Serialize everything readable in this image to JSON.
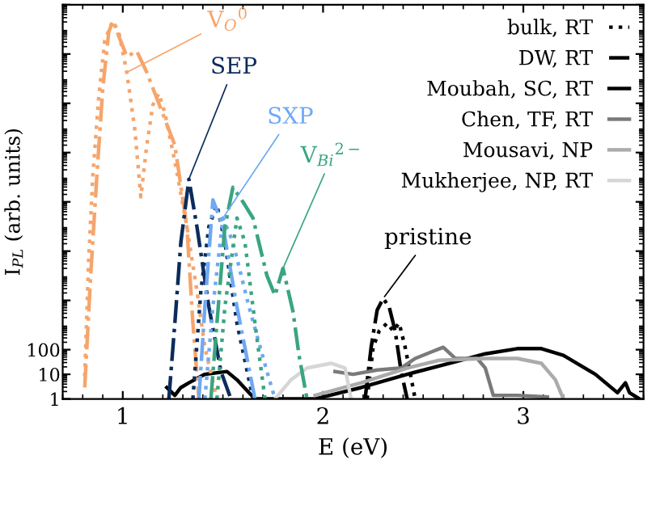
{
  "chart_data": {
    "type": "line",
    "xlabel": "E (eV)",
    "ylabel": "I$_{PL}$ (arb. units)",
    "log": "y",
    "xlim": [
      0.7,
      3.6
    ],
    "xticks": [
      1,
      2,
      3
    ],
    "ylim": [
      1,
      1e+16
    ],
    "yticks": [
      1,
      10,
      100,
      {
        "value": 10000.0,
        "label": null
      },
      {
        "value": 1000000.0,
        "label": null
      },
      {
        "value": 100000000.0,
        "label": null
      },
      {
        "value": 10000000000.0,
        "label": null
      },
      {
        "value": 1000000000000.0,
        "label": null
      },
      {
        "value": 100000000000000.0,
        "label": null
      },
      {
        "value": 1e+16,
        "label": null
      }
    ],
    "legend": "top right",
    "grid": false,
    "series": [
      {
        "name": "bulk, RT",
        "color": "#000000",
        "line_style": "dotted",
        "x": [
          2.22,
          2.25,
          2.28,
          2.32,
          2.35,
          2.38,
          2.41,
          2.46
        ],
        "values": [
          1,
          125,
          570,
          1200,
          570,
          1200,
          125,
          1
        ]
      },
      {
        "name": "DW, RT",
        "color": "#000000",
        "line_style": "dashdot",
        "x": [
          2.21,
          2.24,
          2.27,
          2.3,
          2.33,
          2.36,
          2.39,
          2.42
        ],
        "values": [
          1,
          125,
          4000,
          12000,
          5500,
          570,
          13,
          1
        ]
      },
      {
        "name": "Moubah, SC, RT",
        "color": "#000000",
        "line_style": "solid",
        "x": [
          1.22,
          1.26,
          1.29,
          1.33,
          1.41,
          1.52,
          1.57,
          1.63,
          1.66,
          1.96,
          2.19,
          2.42,
          2.66,
          2.81,
          2.97,
          3.09,
          3.2,
          3.36,
          3.47,
          3.51,
          3.53,
          3.58
        ],
        "values": [
          2.9,
          1.4,
          2.9,
          4.5,
          10,
          13,
          6,
          1.8,
          1,
          1,
          2.9,
          10,
          32,
          68,
          110,
          110,
          59,
          10,
          1.8,
          4.5,
          1.8,
          1
        ]
      },
      {
        "name": "Chen, TF, RT",
        "color": "#7a7a7a",
        "line_style": "solid",
        "x": [
          2.06,
          2.15,
          2.27,
          2.39,
          2.46,
          2.54,
          2.6,
          2.66,
          2.77,
          2.81,
          2.85,
          2.97,
          3.12
        ],
        "values": [
          13,
          10,
          15,
          18,
          44,
          80,
          125,
          44,
          44,
          18,
          1.4,
          1.4,
          1.2
        ]
      },
      {
        "name": "Mousavi, NP",
        "color": "#ababab",
        "line_style": "solid",
        "x": [
          1.96,
          2.19,
          2.42,
          2.58,
          2.81,
          2.97,
          3.09,
          3.16,
          3.2
        ],
        "values": [
          1.4,
          4.5,
          18,
          37,
          44,
          44,
          28,
          6,
          1
        ]
      },
      {
        "name": "Mukherjee, NP, RT",
        "color": "#d6d6d6",
        "line_style": "solid",
        "x": [
          1.76,
          1.84,
          1.92,
          2.04,
          2.11,
          2.14
        ],
        "values": [
          1,
          6,
          18,
          28,
          18,
          1
        ]
      },
      {
        "color": "#f5a56c",
        "line_style": "dotted",
        "x": [
          0.81,
          0.83,
          0.85,
          0.88,
          0.91,
          0.95,
          0.98,
          1.02,
          1.06,
          1.09,
          1.12,
          1.15,
          1.18,
          1.21,
          1.26,
          1.32,
          1.37,
          1.41,
          1.47
        ],
        "values": [
          8.3,
          500000.0,
          960000000.0,
          1800000000000.0,
          360000000000000.0,
          2200000000000000.0,
          780000000000000.0,
          18000000000000.0,
          89000000000.0,
          160000000.0,
          20000000000.0,
          850000000000.0,
          2500000000000.0,
          410000000000.0,
          4400000000.0,
          10000000.0,
          25000.0,
          125,
          1
        ]
      },
      {
        "color": "#f5a56c",
        "line_style": "dashdot",
        "x": [
          0.81,
          0.84,
          0.87,
          0.9,
          0.93,
          0.95,
          1.02,
          1.07,
          1.12,
          1.26,
          1.32,
          1.35,
          1.38
        ],
        "values": [
          2.9,
          110000.0,
          960000000.0,
          3900000000000.0,
          780000000000000.0,
          2200000000000000.0,
          80000000000000.0,
          130000000000000.0,
          18000000000000.0,
          20000000000.0,
          10000000.0,
          1200,
          1
        ]
      },
      {
        "color": "#0b2c5c",
        "line_style": "dashdot",
        "x": [
          1.23,
          1.26,
          1.29,
          1.33,
          1.37,
          1.43,
          1.49,
          1.54
        ],
        "values": [
          1,
          1200,
          2300000.0,
          830000000.0,
          10000000.0,
          5500,
          13,
          1
        ]
      },
      {
        "color": "#0b2c5c",
        "line_style": "dotted",
        "x": [
          1.35,
          1.39,
          1.43,
          1.47,
          1.51,
          1.57,
          1.65
        ],
        "values": [
          1,
          25000.0,
          10000000.0,
          74000000.0,
          2300000.0,
          1200,
          1
        ]
      },
      {
        "color": "#6ea9f2",
        "line_style": "dashdot",
        "x": [
          1.38,
          1.41,
          1.45,
          1.5,
          1.57,
          1.66
        ],
        "values": [
          1,
          5500,
          120000000.0,
          10000000.0,
          5500,
          1
        ]
      },
      {
        "color": "#6ea9f2",
        "line_style": "dotted",
        "x": [
          1.41,
          1.45,
          1.5,
          1.55,
          1.63,
          1.72,
          1.76
        ],
        "values": [
          1,
          5500,
          22000000.0,
          2300000.0,
          5500,
          13,
          1
        ]
      },
      {
        "color": "#3aa57f",
        "line_style": "dashdot",
        "x": [
          1.44,
          1.47,
          1.51,
          1.55,
          1.6,
          1.65,
          1.72,
          1.76,
          1.8,
          1.85,
          1.88,
          1.92
        ],
        "values": [
          1,
          1200,
          10000000.0,
          390000000.0,
          100000000.0,
          22000000.0,
          100000.0,
          16000.0,
          200000.0,
          3500,
          59,
          1
        ]
      },
      {
        "color": "#3aa57f",
        "line_style": "dotted",
        "x": [
          1.47,
          1.51,
          1.57,
          1.61,
          1.66,
          1.71
        ],
        "values": [
          1,
          5500,
          22000000.0,
          2300000.0,
          1200,
          1
        ]
      }
    ],
    "annotations": [
      {
        "text": "V$_{O}$$^{0}$",
        "x": 1.02,
        "y": 18000000000000.0
      },
      {
        "text": "SEP",
        "x": 1.33,
        "y": 830000000.0
      },
      {
        "text": "SXP",
        "x": 1.5,
        "y": 22000000.0
      },
      {
        "text": "V$_{Bi}$$^{2−}$",
        "x": 1.8,
        "y": 200000.0
      },
      {
        "text": "pristine",
        "x": 2.3,
        "y": 12000
      }
    ]
  }
}
